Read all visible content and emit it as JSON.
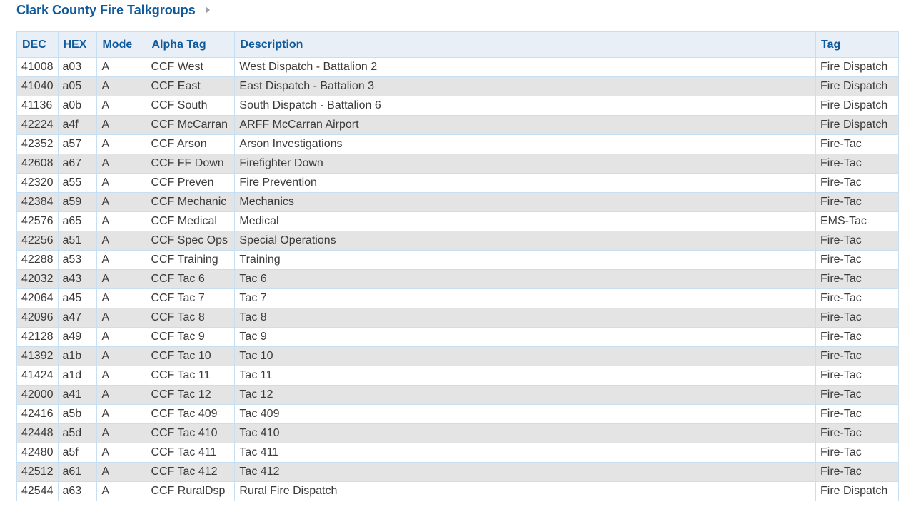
{
  "header": {
    "title": "Clark County Fire Talkgroups"
  },
  "table": {
    "columns": [
      "DEC",
      "HEX",
      "Mode",
      "Alpha Tag",
      "Description",
      "Tag"
    ],
    "rows": [
      [
        "41008",
        "a03",
        "A",
        "CCF West",
        "West Dispatch - Battalion 2",
        "Fire Dispatch"
      ],
      [
        "41040",
        "a05",
        "A",
        "CCF East",
        "East Dispatch - Battalion 3",
        "Fire Dispatch"
      ],
      [
        "41136",
        "a0b",
        "A",
        "CCF South",
        "South Dispatch - Battalion 6",
        "Fire Dispatch"
      ],
      [
        "42224",
        "a4f",
        "A",
        "CCF McCarran",
        "ARFF McCarran Airport",
        "Fire Dispatch"
      ],
      [
        "42352",
        "a57",
        "A",
        "CCF Arson",
        "Arson Investigations",
        "Fire-Tac"
      ],
      [
        "42608",
        "a67",
        "A",
        "CCF FF Down",
        "Firefighter Down",
        "Fire-Tac"
      ],
      [
        "42320",
        "a55",
        "A",
        "CCF Preven",
        "Fire Prevention",
        "Fire-Tac"
      ],
      [
        "42384",
        "a59",
        "A",
        "CCF Mechanic",
        "Mechanics",
        "Fire-Tac"
      ],
      [
        "42576",
        "a65",
        "A",
        "CCF Medical",
        "Medical",
        "EMS-Tac"
      ],
      [
        "42256",
        "a51",
        "A",
        "CCF Spec Ops",
        "Special Operations",
        "Fire-Tac"
      ],
      [
        "42288",
        "a53",
        "A",
        "CCF Training",
        "Training",
        "Fire-Tac"
      ],
      [
        "42032",
        "a43",
        "A",
        "CCF Tac 6",
        "Tac 6",
        "Fire-Tac"
      ],
      [
        "42064",
        "a45",
        "A",
        "CCF Tac 7",
        "Tac 7",
        "Fire-Tac"
      ],
      [
        "42096",
        "a47",
        "A",
        "CCF Tac 8",
        "Tac 8",
        "Fire-Tac"
      ],
      [
        "42128",
        "a49",
        "A",
        "CCF Tac 9",
        "Tac 9",
        "Fire-Tac"
      ],
      [
        "41392",
        "a1b",
        "A",
        "CCF Tac 10",
        "Tac 10",
        "Fire-Tac"
      ],
      [
        "41424",
        "a1d",
        "A",
        "CCF Tac 11",
        "Tac 11",
        "Fire-Tac"
      ],
      [
        "42000",
        "a41",
        "A",
        "CCF Tac 12",
        "Tac 12",
        "Fire-Tac"
      ],
      [
        "42416",
        "a5b",
        "A",
        "CCF Tac 409",
        "Tac 409",
        "Fire-Tac"
      ],
      [
        "42448",
        "a5d",
        "A",
        "CCF Tac 410",
        "Tac 410",
        "Fire-Tac"
      ],
      [
        "42480",
        "a5f",
        "A",
        "CCF Tac 411",
        "Tac 411",
        "Fire-Tac"
      ],
      [
        "42512",
        "a61",
        "A",
        "CCF Tac 412",
        "Tac 412",
        "Fire-Tac"
      ],
      [
        "42544",
        "a63",
        "A",
        "CCF RuralDsp",
        "Rural Fire Dispatch",
        "Fire Dispatch"
      ]
    ]
  },
  "icons": {
    "expand": "triangle-right-icon"
  },
  "colors": {
    "heading": "#0e5a9c",
    "header_bg": "#e9eff7",
    "row_alt": "#e4e4e4",
    "border": "#c7dff0"
  }
}
